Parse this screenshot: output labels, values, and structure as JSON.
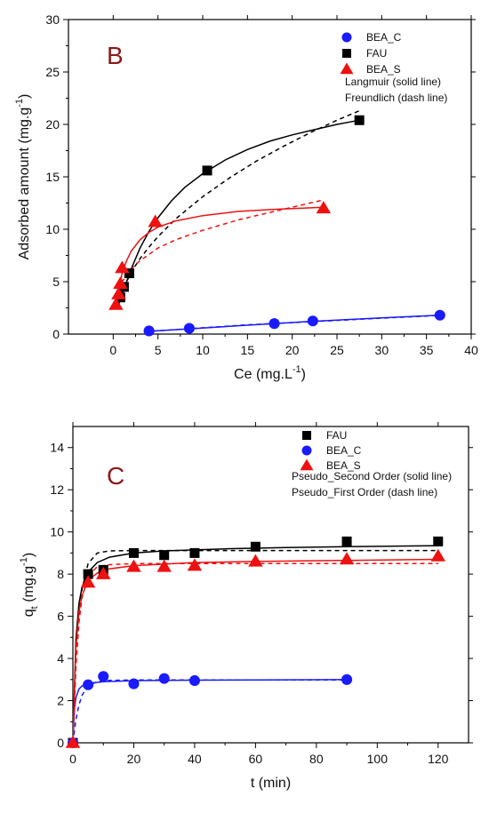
{
  "colors": {
    "black": "#000000",
    "blue": "#1a1aff",
    "red": "#ee1111",
    "panel_letter": "#8b1a1a"
  },
  "chart_data": [
    {
      "type": "scatter",
      "panel_label": "B",
      "xlabel": "Ce (mg.L⁻¹)",
      "ylabel": "Adsorbed amount (mg.g⁻¹)",
      "xlim": [
        -5,
        40
      ],
      "ylim": [
        0,
        30
      ],
      "xticks": [
        0,
        5,
        10,
        15,
        20,
        25,
        30,
        35,
        40
      ],
      "yticks": [
        0,
        5,
        10,
        15,
        20,
        25,
        30
      ],
      "legend_position": "top-right",
      "legend_notes": [
        "Langmuir (solid line)",
        "Freundlich (dash line)"
      ],
      "series": [
        {
          "name": "BEA_C",
          "marker": "circle",
          "color": "#1a1aff",
          "points": [
            [
              4,
              0.3
            ],
            [
              8.5,
              0.55
            ],
            [
              18,
              1.0
            ],
            [
              22.3,
              1.25
            ],
            [
              36.5,
              1.8
            ]
          ],
          "solid_fit": [
            [
              3.5,
              0.25
            ],
            [
              8.5,
              0.5
            ],
            [
              15,
              0.85
            ],
            [
              22,
              1.2
            ],
            [
              30,
              1.55
            ],
            [
              36.5,
              1.8
            ]
          ],
          "dash_fit": [
            [
              3.5,
              0.22
            ],
            [
              8.5,
              0.52
            ],
            [
              15,
              0.88
            ],
            [
              22,
              1.18
            ],
            [
              30,
              1.52
            ],
            [
              36.5,
              1.78
            ]
          ]
        },
        {
          "name": "FAU",
          "marker": "square",
          "color": "#000000",
          "points": [
            [
              0.8,
              3.5
            ],
            [
              1.2,
              4.5
            ],
            [
              1.8,
              5.8
            ],
            [
              10.5,
              15.6
            ],
            [
              27.5,
              20.4
            ]
          ],
          "solid_fit": [
            [
              0.5,
              2.5
            ],
            [
              1,
              3.8
            ],
            [
              2,
              6.2
            ],
            [
              3,
              8.2
            ],
            [
              4,
              9.8
            ],
            [
              5,
              11.1
            ],
            [
              6.5,
              12.7
            ],
            [
              8,
              14.0
            ],
            [
              10,
              15.3
            ],
            [
              12.5,
              16.6
            ],
            [
              15,
              17.6
            ],
            [
              17.5,
              18.4
            ],
            [
              20,
              19.0
            ],
            [
              22.5,
              19.5
            ],
            [
              25,
              20.0
            ],
            [
              27.5,
              20.4
            ]
          ],
          "dash_fit": [
            [
              0.5,
              3.0
            ],
            [
              1,
              4.1
            ],
            [
              2,
              5.9
            ],
            [
              3,
              7.2
            ],
            [
              4,
              8.3
            ],
            [
              5,
              9.3
            ],
            [
              7,
              11.0
            ],
            [
              10,
              13.1
            ],
            [
              13,
              14.9
            ],
            [
              16,
              16.5
            ],
            [
              19,
              17.9
            ],
            [
              22,
              19.2
            ],
            [
              25,
              20.4
            ],
            [
              27.5,
              21.3
            ]
          ]
        },
        {
          "name": "BEA_S",
          "marker": "triangle",
          "color": "#ee1111",
          "points": [
            [
              0.3,
              2.8
            ],
            [
              0.6,
              3.8
            ],
            [
              0.8,
              4.8
            ],
            [
              1.0,
              6.3
            ],
            [
              4.7,
              10.7
            ],
            [
              23.5,
              12.0
            ]
          ],
          "solid_fit": [
            [
              0.3,
              2.8
            ],
            [
              0.6,
              4.3
            ],
            [
              1,
              5.8
            ],
            [
              1.5,
              7.0
            ],
            [
              2,
              7.9
            ],
            [
              3,
              9.0
            ],
            [
              4,
              9.7
            ],
            [
              5,
              10.2
            ],
            [
              7,
              10.8
            ],
            [
              10,
              11.3
            ],
            [
              14,
              11.7
            ],
            [
              18,
              11.9
            ],
            [
              23.5,
              12.1
            ]
          ],
          "dash_fit": [
            [
              0.3,
              3.5
            ],
            [
              0.6,
              4.3
            ],
            [
              1,
              5.0
            ],
            [
              2,
              6.2
            ],
            [
              3,
              7.0
            ],
            [
              5,
              8.2
            ],
            [
              7,
              9.0
            ],
            [
              10,
              9.9
            ],
            [
              14,
              10.9
            ],
            [
              18,
              11.7
            ],
            [
              23.5,
              12.8
            ]
          ]
        }
      ]
    },
    {
      "type": "scatter",
      "panel_label": "C",
      "xlabel": "t (min)",
      "ylabel": "q_t (mg.g⁻¹)",
      "xlim": [
        0,
        130
      ],
      "ylim": [
        0,
        15
      ],
      "xticks": [
        0,
        20,
        40,
        60,
        80,
        100,
        120
      ],
      "yticks": [
        0,
        2,
        4,
        6,
        8,
        10,
        12,
        14
      ],
      "legend_position": "top-right",
      "legend_notes": [
        "Pseudo_Second Order (solid line)",
        "Pseudo_First Order (dash line)"
      ],
      "series": [
        {
          "name": "FAU",
          "marker": "square",
          "color": "#000000",
          "points": [
            [
              0,
              0
            ],
            [
              5,
              8.0
            ],
            [
              10,
              8.2
            ],
            [
              20,
              9.0
            ],
            [
              30,
              8.9
            ],
            [
              40,
              9.0
            ],
            [
              60,
              9.3
            ],
            [
              90,
              9.55
            ],
            [
              120,
              9.55
            ]
          ],
          "solid_fit": [
            [
              0,
              0
            ],
            [
              1,
              4.9
            ],
            [
              2,
              6.6
            ],
            [
              3,
              7.4
            ],
            [
              5,
              8.1
            ],
            [
              8,
              8.55
            ],
            [
              12,
              8.8
            ],
            [
              20,
              9.0
            ],
            [
              30,
              9.1
            ],
            [
              50,
              9.2
            ],
            [
              70,
              9.26
            ],
            [
              90,
              9.3
            ],
            [
              120,
              9.35
            ]
          ],
          "dash_fit": [
            [
              0,
              0
            ],
            [
              1,
              3.8
            ],
            [
              2,
              6.0
            ],
            [
              3,
              7.3
            ],
            [
              5,
              8.5
            ],
            [
              8,
              9.0
            ],
            [
              12,
              9.1
            ],
            [
              20,
              9.12
            ],
            [
              40,
              9.12
            ],
            [
              120,
              9.12
            ]
          ]
        },
        {
          "name": "BEA_C",
          "marker": "circle",
          "color": "#1a1aff",
          "points": [
            [
              0,
              0
            ],
            [
              5,
              2.75
            ],
            [
              10,
              3.15
            ],
            [
              20,
              2.8
            ],
            [
              30,
              3.05
            ],
            [
              40,
              2.95
            ],
            [
              90,
              3.0
            ]
          ],
          "solid_fit": [
            [
              0,
              0
            ],
            [
              0.5,
              1.6
            ],
            [
              1,
              2.15
            ],
            [
              2,
              2.55
            ],
            [
              3,
              2.7
            ],
            [
              5,
              2.82
            ],
            [
              10,
              2.9
            ],
            [
              20,
              2.95
            ],
            [
              40,
              2.97
            ],
            [
              90,
              3.0
            ]
          ],
          "dash_fit": [
            [
              0,
              0
            ],
            [
              1,
              1.1
            ],
            [
              2,
              1.8
            ],
            [
              3,
              2.25
            ],
            [
              4,
              2.5
            ],
            [
              5,
              2.7
            ],
            [
              8,
              2.9
            ],
            [
              12,
              2.96
            ],
            [
              20,
              2.98
            ],
            [
              90,
              2.98
            ]
          ]
        },
        {
          "name": "BEA_S",
          "marker": "triangle",
          "color": "#ee1111",
          "points": [
            [
              0,
              0
            ],
            [
              5,
              7.6
            ],
            [
              10,
              8.0
            ],
            [
              20,
              8.35
            ],
            [
              30,
              8.35
            ],
            [
              40,
              8.4
            ],
            [
              60,
              8.6
            ],
            [
              90,
              8.7
            ],
            [
              120,
              8.85
            ]
          ],
          "solid_fit": [
            [
              0,
              0
            ],
            [
              1,
              4.5
            ],
            [
              2,
              6.2
            ],
            [
              3,
              7.0
            ],
            [
              5,
              7.7
            ],
            [
              8,
              8.05
            ],
            [
              12,
              8.25
            ],
            [
              20,
              8.4
            ],
            [
              40,
              8.55
            ],
            [
              60,
              8.6
            ],
            [
              90,
              8.65
            ],
            [
              120,
              8.7
            ]
          ],
          "dash_fit": [
            [
              0,
              0
            ],
            [
              1,
              3.6
            ],
            [
              2,
              5.7
            ],
            [
              3,
              6.9
            ],
            [
              5,
              7.9
            ],
            [
              8,
              8.35
            ],
            [
              12,
              8.45
            ],
            [
              20,
              8.5
            ],
            [
              120,
              8.5
            ]
          ]
        }
      ]
    }
  ]
}
